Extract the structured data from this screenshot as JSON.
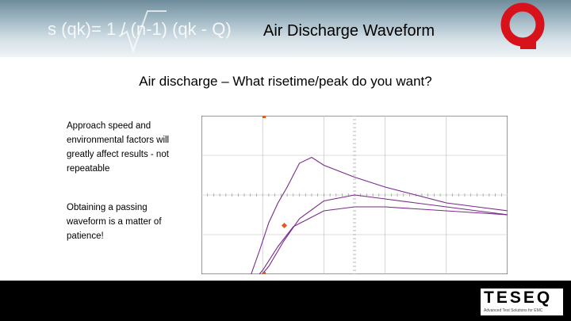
{
  "header": {
    "title": "Air Discharge Waveform",
    "banner_formula_text": "s (qk)= 1 / (n-1) (qk - Q)"
  },
  "main": {
    "subtitle": "Air discharge – What risetime/peak do you want?",
    "notes": [
      "Approach speed and environmental factors will greatly affect results - not repeatable",
      "Obtaining a passing waveform is a matter of patience!"
    ]
  },
  "footer": {
    "brand": "TESEQ",
    "tagline": "Advanced Test Solutions for EMC"
  },
  "colors": {
    "accent_red": "#d8121a",
    "trace_purple": "#7a2a8a",
    "marker_orange": "#e8581a",
    "footer_bg": "#000000"
  },
  "chart_data": {
    "type": "line",
    "title": "",
    "xlabel": "",
    "ylabel": "",
    "grid": true,
    "series": [
      {
        "x": [
          0,
          0.8,
          1.3,
          1.6,
          1.9,
          2.2,
          2.5,
          2.8,
          3.2,
          3.6,
          4,
          5,
          6,
          7,
          8,
          9,
          10
        ],
        "y": [
          -5.05,
          -5.0,
          -4.8,
          -4.1,
          -2.8,
          -1.4,
          -0.4,
          0.4,
          1.6,
          1.9,
          1.5,
          0.9,
          0.4,
          0,
          -0.4,
          -0.6,
          -0.8
        ]
      },
      {
        "x": [
          0,
          1,
          1.5,
          2,
          2.5,
          3,
          4,
          5,
          6,
          7,
          8,
          9,
          10
        ],
        "y": [
          -5.1,
          -5.0,
          -4.7,
          -3.8,
          -2.6,
          -1.6,
          -0.8,
          -0.6,
          -0.6,
          -0.7,
          -0.8,
          -0.9,
          -1.0
        ]
      },
      {
        "x": [
          0,
          1,
          1.6,
          2.2,
          2.7,
          3.2,
          4,
          5,
          6,
          7,
          8,
          9,
          10
        ],
        "y": [
          -5.2,
          -5.05,
          -4.7,
          -3.6,
          -2.3,
          -1.2,
          -0.3,
          0,
          -0.2,
          -0.4,
          -0.6,
          -0.8,
          -1.0
        ]
      }
    ]
  }
}
